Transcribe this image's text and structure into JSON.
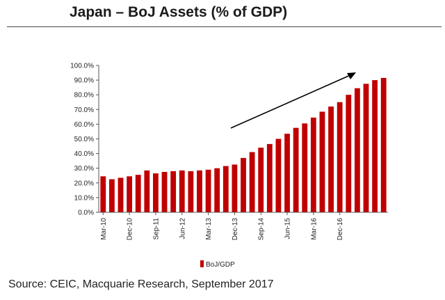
{
  "title": "Japan – BoJ Assets (% of GDP)",
  "source": "Source: CEIC, Macquarie Research, September 2017",
  "chart_data": {
    "type": "bar",
    "title": "Japan – BoJ Assets (% of GDP)",
    "xlabel": "",
    "ylabel": "",
    "ylim": [
      0,
      100
    ],
    "y_ticks": [
      "0.0%",
      "10.0%",
      "20.0%",
      "30.0%",
      "40.0%",
      "50.0%",
      "60.0%",
      "70.0%",
      "80.0%",
      "90.0%",
      "100.0%"
    ],
    "grid": false,
    "legend_position": "bottom",
    "bar_color": "#c00000",
    "x_tick_labels": [
      "Mar-10",
      "Dec-10",
      "Sep-11",
      "Jun-12",
      "Mar-13",
      "Dec-13",
      "Sep-14",
      "Jun-15",
      "Mar-16",
      "Dec-16"
    ],
    "label_every": 3,
    "annotation": "upward trend arrow",
    "series": [
      {
        "name": "BoJ/GDP",
        "values": [
          24.5,
          22.5,
          23.5,
          24.5,
          25.5,
          28.5,
          26.5,
          27.5,
          28,
          28.5,
          28,
          28.5,
          29,
          30,
          31.5,
          32.5,
          37,
          41,
          44,
          46.5,
          50,
          53.5,
          57.5,
          60.5,
          64.5,
          68.5,
          72,
          75,
          80,
          84.5,
          87.5,
          90,
          91.5
        ]
      }
    ]
  }
}
